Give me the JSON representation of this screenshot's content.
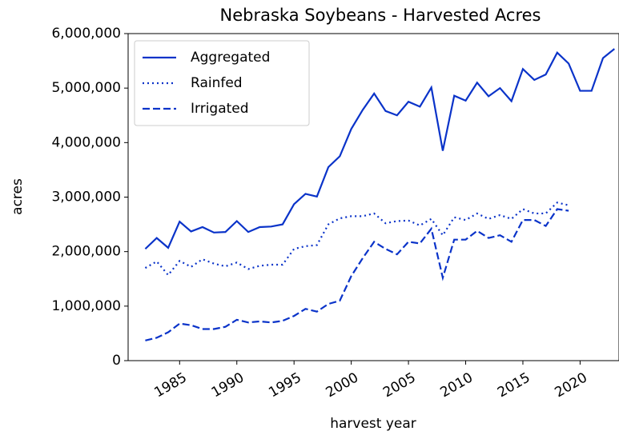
{
  "chart_data": {
    "type": "line",
    "title": "Nebraska Soybeans - Harvested Acres",
    "x_label": "harvest year",
    "y_label": "acres",
    "x": [
      1982,
      1983,
      1984,
      1985,
      1986,
      1987,
      1988,
      1989,
      1990,
      1991,
      1992,
      1993,
      1994,
      1995,
      1996,
      1997,
      1998,
      1999,
      2000,
      2001,
      2002,
      2003,
      2004,
      2005,
      2006,
      2007,
      2008,
      2009,
      2010,
      2011,
      2012,
      2013,
      2014,
      2015,
      2016,
      2017,
      2018,
      2019,
      2020,
      2021,
      2022,
      2023
    ],
    "series": [
      {
        "name": "Aggregated",
        "color": "#0a33c9",
        "linestyle": "solid",
        "values": [
          2050000,
          2250000,
          2070000,
          2550000,
          2370000,
          2450000,
          2350000,
          2360000,
          2560000,
          2360000,
          2450000,
          2460000,
          2500000,
          2870000,
          3060000,
          3010000,
          3550000,
          3750000,
          4250000,
          4600000,
          4900000,
          4580000,
          4500000,
          4750000,
          4660000,
          5010000,
          3850000,
          4860000,
          4770000,
          5100000,
          4850000,
          5000000,
          4760000,
          5350000,
          5150000,
          5250000,
          5650000,
          5450000,
          4950000,
          4950000,
          5550000,
          5720000
        ]
      },
      {
        "name": "Rainfed",
        "color": "#0a33c9",
        "linestyle": "dotted",
        "values": [
          1700000,
          1820000,
          1570000,
          1830000,
          1720000,
          1860000,
          1780000,
          1730000,
          1800000,
          1680000,
          1740000,
          1760000,
          1760000,
          2050000,
          2100000,
          2120000,
          2500000,
          2610000,
          2650000,
          2650000,
          2700000,
          2520000,
          2560000,
          2570000,
          2480000,
          2600000,
          2300000,
          2630000,
          2580000,
          2700000,
          2600000,
          2670000,
          2600000,
          2780000,
          2700000,
          2700000,
          2900000,
          2850000,
          null,
          null,
          null,
          null
        ]
      },
      {
        "name": "Irrigated",
        "color": "#0a33c9",
        "linestyle": "dashed",
        "values": [
          370000,
          420000,
          520000,
          680000,
          650000,
          580000,
          580000,
          620000,
          750000,
          700000,
          720000,
          700000,
          730000,
          820000,
          950000,
          900000,
          1040000,
          1100000,
          1550000,
          1880000,
          2180000,
          2050000,
          1950000,
          2180000,
          2150000,
          2420000,
          1520000,
          2220000,
          2220000,
          2380000,
          2250000,
          2300000,
          2180000,
          2580000,
          2580000,
          2470000,
          2780000,
          2750000,
          null,
          null,
          null,
          null
        ]
      }
    ],
    "xlim": [
      1980.5,
      2023.4
    ],
    "xticks": [
      1985,
      1990,
      1995,
      2000,
      2005,
      2010,
      2015,
      2020
    ],
    "ylim": [
      0,
      6000000
    ],
    "yticks": [
      0,
      {
        "value": 1000000,
        "label": "1,000,000"
      },
      {
        "value": 2000000,
        "label": "2,000,000"
      },
      {
        "value": 3000000,
        "label": "3,000,000"
      },
      {
        "value": 4000000,
        "label": "4,000,000"
      },
      {
        "value": 5000000,
        "label": "5,000,000"
      },
      {
        "value": 6000000,
        "label": "6,000,000"
      }
    ],
    "legend": "upper left"
  }
}
